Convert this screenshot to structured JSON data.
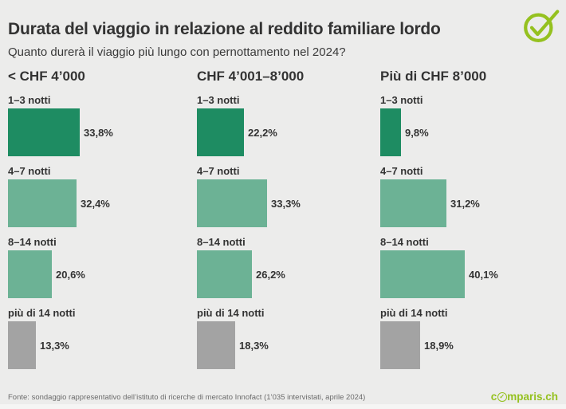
{
  "header": {
    "title": "Durata del viaggio in relazione al reddito familiare lordo",
    "subtitle": "Quanto durerà il viaggio più lungo con pernottamento nel 2024?"
  },
  "footer": {
    "source": "Fonte: sondaggio rappresentativo dell’istituto di ricerche di mercato Innofact (1’035 intervistati, aprile 2024)",
    "logo_text": "comparis.ch",
    "logo_prefix": "c",
    "logo_check": "✓",
    "logo_suffix": "mparis.ch"
  },
  "icons": {
    "brand_check": "checkmark-circle-icon"
  },
  "colors": {
    "background": "#ececeb",
    "dark_green": "#1e8c62",
    "medium_green": "#6cb295",
    "gray": "#a3a3a3",
    "brand_green": "#95c11f",
    "text_dark": "#333333",
    "text_muted": "#6b6b6b"
  },
  "chart_data": {
    "type": "bar",
    "orientation": "horizontal",
    "title": "Durata del viaggio in relazione al reddito familiare lordo",
    "subtitle": "Quanto durerà il viaggio più lungo con pernottamento nel 2024?",
    "categories": [
      "1–3 notti",
      "4–7 notti",
      "8–14 notti",
      "più di 14 notti"
    ],
    "bar_colors_by_category": [
      "#1e8c62",
      "#6cb295",
      "#6cb295",
      "#a3a3a3"
    ],
    "xlim": [
      0,
      45
    ],
    "value_suffix": "%",
    "grid": false,
    "legend": false,
    "groups": [
      {
        "label": "< CHF 4’000",
        "values": [
          33.8,
          32.4,
          20.6,
          13.3
        ],
        "display": [
          "33,8%",
          "32,4%",
          "20,6%",
          "13,3%"
        ]
      },
      {
        "label": "CHF 4’001–8’000",
        "values": [
          22.2,
          33.3,
          26.2,
          18.3
        ],
        "display": [
          "22,2%",
          "33,3%",
          "26,2%",
          "18,3%"
        ]
      },
      {
        "label": "Più di CHF 8’000",
        "values": [
          9.8,
          31.2,
          40.1,
          18.9
        ],
        "display": [
          "9,8%",
          "31,2%",
          "40,1%",
          "18,9%"
        ]
      }
    ],
    "source": "Fonte: sondaggio rappresentativo dell’istituto di ricerche di mercato Innofact (1’035 intervistati, aprile 2024)"
  }
}
